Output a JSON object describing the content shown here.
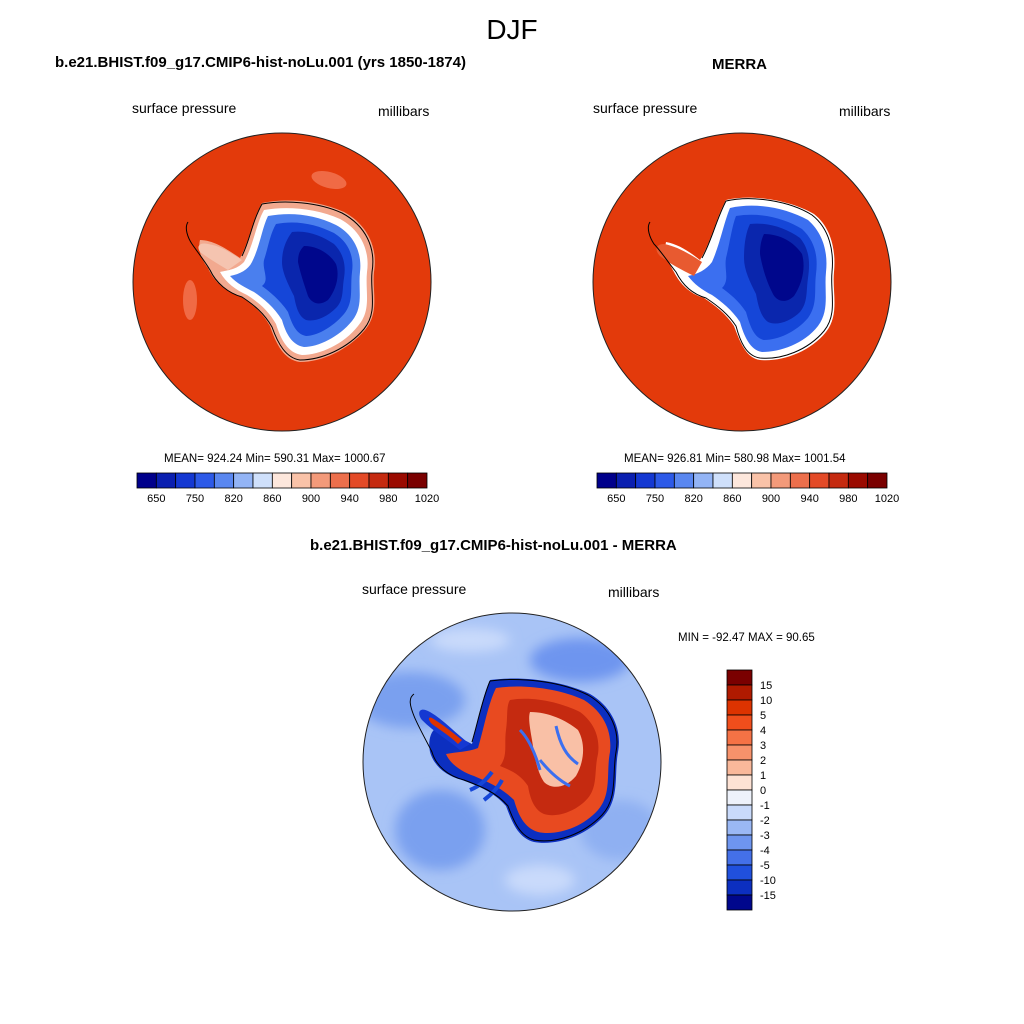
{
  "season": "DJF",
  "panels": {
    "model": {
      "title": "b.e21.BHIST.f09_g17.CMIP6-hist-noLu.001 (yrs 1850-1874)",
      "variable": "surface pressure",
      "units": "millibars",
      "stats": "MEAN= 924.24  Min= 590.31  Max= 1000.67"
    },
    "obs": {
      "title": "MERRA",
      "variable": "surface pressure",
      "units": "millibars",
      "stats": "MEAN= 926.81  Min= 580.98  Max= 1001.54"
    },
    "diff": {
      "title": "b.e21.BHIST.f09_g17.CMIP6-hist-noLu.001 - MERRA",
      "variable": "surface pressure",
      "units": "millibars",
      "stats": "MIN = -92.47 MAX =  90.65"
    }
  },
  "abs_colorbar": {
    "labels": [
      "650",
      "750",
      "820",
      "860",
      "900",
      "940",
      "980",
      "1020"
    ],
    "colors": [
      "#00008b",
      "#0a1fb0",
      "#1438d2",
      "#2d5ae8",
      "#5a87f0",
      "#93b4f5",
      "#cfe0fb",
      "#fde7dc",
      "#f9c2a8",
      "#f39a7a",
      "#ec6f4c",
      "#e34a27",
      "#c52a10",
      "#9a0a00",
      "#7a0000"
    ]
  },
  "diff_colorbar": {
    "labels": [
      "15",
      "10",
      "5",
      "4",
      "3",
      "2",
      "1",
      "0",
      "-1",
      "-2",
      "-3",
      "-4",
      "-5",
      "-10",
      "-15"
    ],
    "colors": [
      "#7a0000",
      "#b01a00",
      "#dd3300",
      "#f04e1c",
      "#f57245",
      "#f7926b",
      "#f9b89a",
      "#fde2d4",
      "#eef2fb",
      "#c9dafb",
      "#9ab8f5",
      "#6e95ef",
      "#4470e8",
      "#2050dd",
      "#0c2fc0",
      "#00078c"
    ]
  }
}
